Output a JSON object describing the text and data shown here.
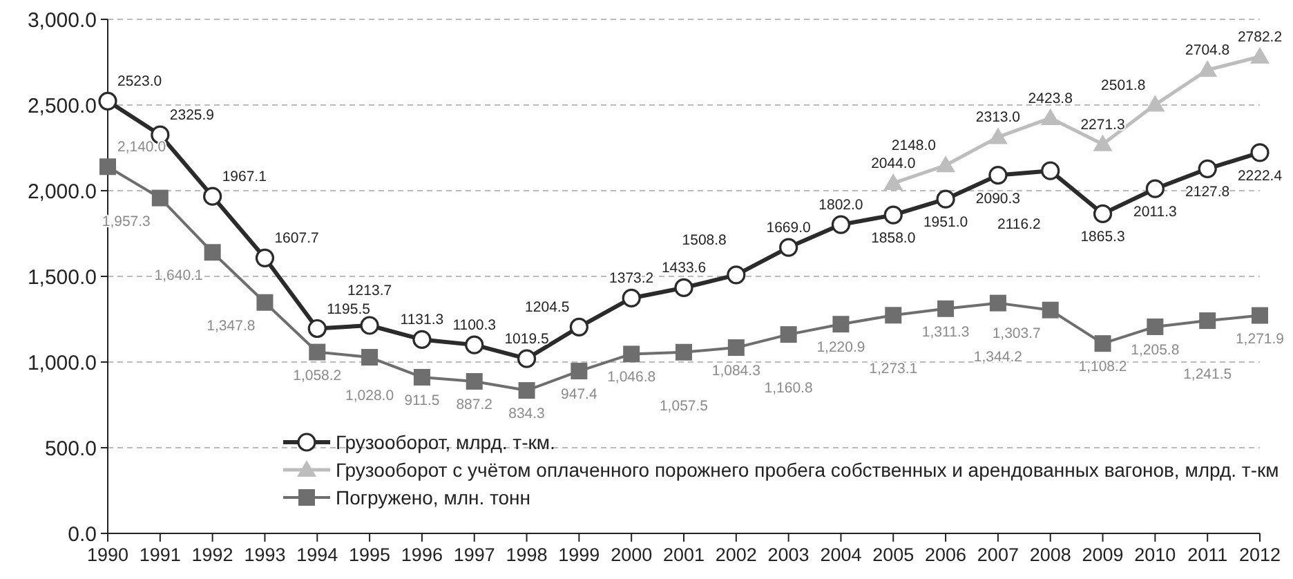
{
  "chart_data": {
    "type": "line",
    "categories": [
      "1990",
      "1991",
      "1992",
      "1993",
      "1994",
      "1995",
      "1996",
      "1997",
      "1998",
      "1999",
      "2000",
      "2001",
      "2002",
      "2003",
      "2004",
      "2005",
      "2006",
      "2007",
      "2008",
      "2009",
      "2010",
      "2011",
      "2012"
    ],
    "ylim": [
      0,
      3000
    ],
    "yticks": [
      {
        "value": 0,
        "label": "0.0"
      },
      {
        "value": 500,
        "label": "500.0"
      },
      {
        "value": 1000,
        "label": "1,000.0"
      },
      {
        "value": 1500,
        "label": "1,500.0"
      },
      {
        "value": 2000,
        "label": "2,000.0"
      },
      {
        "value": 2500,
        "label": "2,500.0"
      },
      {
        "value": 3000,
        "label": "3,000.0"
      }
    ],
    "grid": "y",
    "legend": "bottom",
    "line_style": "solid",
    "series": [
      {
        "name": "Грузооборот, млрд. т-км.",
        "color": "#2b2b2b",
        "marker": "circle",
        "values": [
          2523.0,
          2325.9,
          1967.1,
          1607.7,
          1195.5,
          1213.7,
          1131.3,
          1100.3,
          1019.5,
          1204.5,
          1373.2,
          1433.6,
          1508.8,
          1669.0,
          1802.0,
          1858.0,
          1951.0,
          2090.3,
          2116.2,
          1865.3,
          2011.3,
          2127.8,
          2222.4
        ],
        "value_labels": [
          "2523.0",
          "2325.9",
          "1967.1",
          "1607.7",
          "1195.5",
          "1213.7",
          "1131.3",
          "1100.3",
          "1019.5",
          "1204.5",
          "1373.2",
          "1433.6",
          "1508.8",
          "1669.0",
          "1802.0",
          "1858.0",
          "1951.0",
          "2090.3",
          "2116.2",
          "1865.3",
          "2011.3",
          "2127.8",
          "2222.4"
        ]
      },
      {
        "name": "Грузооборот с учётом оплаченного порожнего пробега собственных и арендованных вагонов, млрд. т-км",
        "color": "#bdbdbd",
        "marker": "triangle",
        "values": [
          null,
          null,
          null,
          null,
          null,
          null,
          null,
          null,
          null,
          null,
          null,
          null,
          null,
          null,
          null,
          2044.0,
          2148.0,
          2313.0,
          2423.8,
          2271.3,
          2501.8,
          2704.8,
          2782.2
        ],
        "value_labels": [
          null,
          null,
          null,
          null,
          null,
          null,
          null,
          null,
          null,
          null,
          null,
          null,
          null,
          null,
          null,
          "2044.0",
          "2148.0",
          "2313.0",
          "2423.8",
          "2271.3",
          "2501.8",
          "2704.8",
          "2782.2"
        ]
      },
      {
        "name": "Погружено, млн. тонн",
        "color": "#6e6e6e",
        "marker": "square",
        "values": [
          2140.0,
          1957.3,
          1640.1,
          1347.8,
          1058.2,
          1028.0,
          911.5,
          887.2,
          834.3,
          947.4,
          1046.8,
          1057.5,
          1084.3,
          1160.8,
          1220.9,
          1273.1,
          1311.3,
          1344.2,
          1303.7,
          1108.2,
          1205.8,
          1241.5,
          1271.9
        ],
        "value_labels": [
          "2,140.0",
          "1,957.3",
          "1,640.1",
          "1,347.8",
          "1,058.2",
          "1,028.0",
          "911.5",
          "887.2",
          "834.3",
          "947.4",
          "1,046.8",
          "1,057.5",
          "1,084.3",
          "1,160.8",
          "1,220.9",
          "1,273.1",
          "1,311.3",
          "1,344.2",
          "1,303.7",
          "1,108.2",
          "1,205.8",
          "1,241.5",
          "1,271.9"
        ]
      }
    ]
  }
}
